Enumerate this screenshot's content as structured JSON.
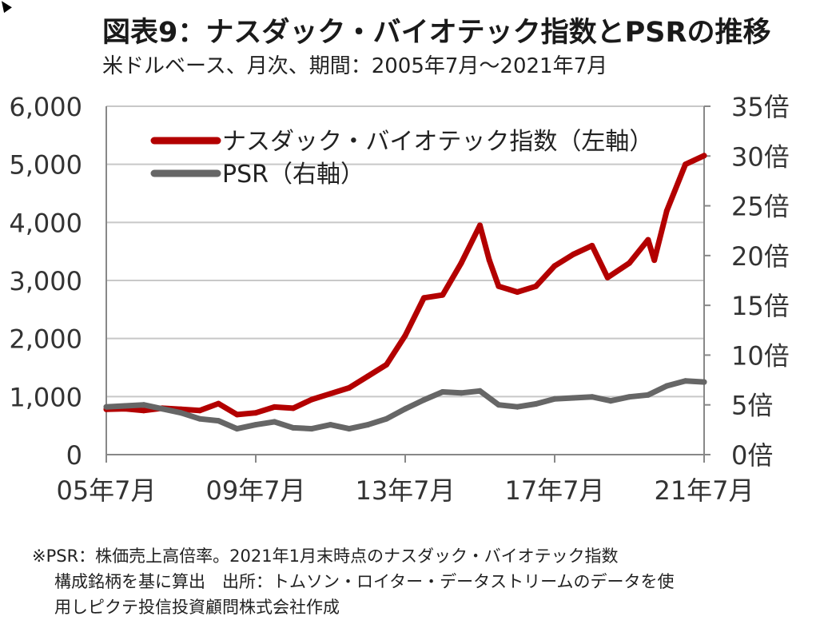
{
  "title": "図表9：ナスダック・バイオテック指数とPSRの推移",
  "subtitle": "米ドルベース、月次、期間：2005年7月～2021年7月",
  "notes": [
    "※PSR：株価売上高倍率。2021年1月末時点のナスダック・バイオテック指数",
    "構成銘柄を基に算出　出所：トムソン・ロイター・データストリームのデータを使",
    "用しピクテ投信投資顧問株式会社作成"
  ],
  "chart_data": {
    "type": "line",
    "grid": true,
    "legend_position": "top-left",
    "x_ticks": [
      "05年7月",
      "09年7月",
      "13年7月",
      "17年7月",
      "21年7月"
    ],
    "x_tick_dates": [
      "2005-07",
      "2009-07",
      "2013-07",
      "2017-07",
      "2021-07"
    ],
    "y_left": {
      "ylim": [
        0,
        6000
      ],
      "ticks": [
        0,
        1000,
        2000,
        3000,
        4000,
        5000,
        6000
      ],
      "tick_labels": [
        "0",
        "1,000",
        "2,000",
        "3,000",
        "4,000",
        "5,000",
        "6,000"
      ]
    },
    "y_right": {
      "ylim": [
        0,
        35
      ],
      "ticks": [
        0,
        5,
        10,
        15,
        20,
        25,
        30,
        35
      ],
      "tick_labels": [
        "0倍",
        "5倍",
        "10倍",
        "15倍",
        "20倍",
        "25倍",
        "30倍",
        "35倍"
      ]
    },
    "series": [
      {
        "name": "ナスダック・バイオテック指数（左軸）",
        "axis": "left",
        "color": "#b30000",
        "points": [
          [
            "2005-07",
            780
          ],
          [
            "2006-01",
            790
          ],
          [
            "2006-07",
            760
          ],
          [
            "2007-01",
            800
          ],
          [
            "2007-07",
            780
          ],
          [
            "2008-01",
            760
          ],
          [
            "2008-07",
            880
          ],
          [
            "2009-01",
            690
          ],
          [
            "2009-07",
            720
          ],
          [
            "2010-01",
            820
          ],
          [
            "2010-07",
            800
          ],
          [
            "2011-01",
            950
          ],
          [
            "2011-07",
            1050
          ],
          [
            "2012-01",
            1150
          ],
          [
            "2012-07",
            1350
          ],
          [
            "2013-01",
            1550
          ],
          [
            "2013-07",
            2050
          ],
          [
            "2014-01",
            2700
          ],
          [
            "2014-07",
            2750
          ],
          [
            "2015-01",
            3300
          ],
          [
            "2015-07",
            3950
          ],
          [
            "2015-10",
            3350
          ],
          [
            "2016-01",
            2900
          ],
          [
            "2016-07",
            2800
          ],
          [
            "2017-01",
            2900
          ],
          [
            "2017-07",
            3250
          ],
          [
            "2018-01",
            3450
          ],
          [
            "2018-07",
            3600
          ],
          [
            "2018-12",
            3050
          ],
          [
            "2019-07",
            3300
          ],
          [
            "2020-01",
            3700
          ],
          [
            "2020-03",
            3350
          ],
          [
            "2020-07",
            4200
          ],
          [
            "2021-01",
            5000
          ],
          [
            "2021-07",
            5150
          ]
        ]
      },
      {
        "name": "PSR（右軸）",
        "axis": "right",
        "color": "#666666",
        "points": [
          [
            "2005-07",
            4.8
          ],
          [
            "2006-01",
            4.9
          ],
          [
            "2006-07",
            5.0
          ],
          [
            "2007-01",
            4.6
          ],
          [
            "2007-07",
            4.2
          ],
          [
            "2008-01",
            3.6
          ],
          [
            "2008-07",
            3.4
          ],
          [
            "2009-01",
            2.6
          ],
          [
            "2009-07",
            3.0
          ],
          [
            "2010-01",
            3.3
          ],
          [
            "2010-07",
            2.7
          ],
          [
            "2011-01",
            2.6
          ],
          [
            "2011-07",
            3.0
          ],
          [
            "2012-01",
            2.6
          ],
          [
            "2012-07",
            3.0
          ],
          [
            "2013-01",
            3.6
          ],
          [
            "2013-07",
            4.6
          ],
          [
            "2014-01",
            5.5
          ],
          [
            "2014-07",
            6.3
          ],
          [
            "2015-01",
            6.2
          ],
          [
            "2015-07",
            6.4
          ],
          [
            "2016-01",
            5.0
          ],
          [
            "2016-07",
            4.8
          ],
          [
            "2017-01",
            5.1
          ],
          [
            "2017-07",
            5.6
          ],
          [
            "2018-01",
            5.7
          ],
          [
            "2018-07",
            5.8
          ],
          [
            "2019-01",
            5.4
          ],
          [
            "2019-07",
            5.8
          ],
          [
            "2020-01",
            6.0
          ],
          [
            "2020-07",
            6.9
          ],
          [
            "2021-01",
            7.4
          ],
          [
            "2021-07",
            7.3
          ]
        ]
      }
    ]
  }
}
